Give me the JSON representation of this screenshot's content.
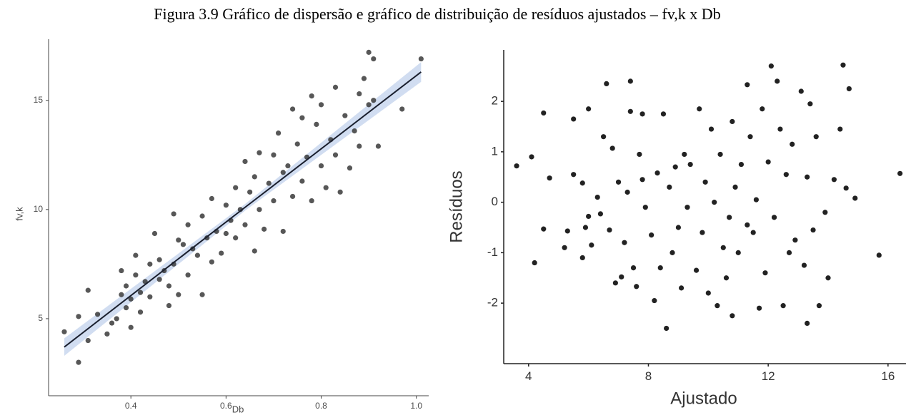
{
  "title": "Figura 3.9 Gráfico de dispersão e gráfico de distribuição de resíduos ajustados – fv,k x Db",
  "chart_data": [
    {
      "type": "scatter",
      "xlabel": "Db",
      "ylabel": "fv,k",
      "color": "#3a3a3a",
      "xlim": [
        0.227,
        1.026
      ],
      "ylim": [
        1.47,
        17.8
      ],
      "xticks": [
        {
          "value": 0.4,
          "label": "0.4"
        },
        {
          "value": 0.6,
          "label": "0.6"
        },
        {
          "value": 0.8,
          "label": "0.8"
        },
        {
          "value": 1.0,
          "label": "1.0"
        }
      ],
      "yticks": [
        5,
        10,
        15
      ],
      "x": [
        0.26,
        0.29,
        0.29,
        0.31,
        0.31,
        0.33,
        0.35,
        0.36,
        0.37,
        0.38,
        0.38,
        0.39,
        0.39,
        0.4,
        0.4,
        0.41,
        0.41,
        0.42,
        0.42,
        0.43,
        0.44,
        0.44,
        0.45,
        0.46,
        0.46,
        0.47,
        0.48,
        0.48,
        0.49,
        0.49,
        0.5,
        0.5,
        0.51,
        0.52,
        0.52,
        0.53,
        0.54,
        0.55,
        0.55,
        0.56,
        0.57,
        0.57,
        0.58,
        0.59,
        0.6,
        0.6,
        0.61,
        0.62,
        0.62,
        0.63,
        0.64,
        0.64,
        0.65,
        0.66,
        0.66,
        0.67,
        0.67,
        0.68,
        0.69,
        0.7,
        0.7,
        0.71,
        0.72,
        0.72,
        0.73,
        0.74,
        0.74,
        0.75,
        0.76,
        0.76,
        0.77,
        0.78,
        0.78,
        0.79,
        0.8,
        0.8,
        0.81,
        0.82,
        0.83,
        0.83,
        0.84,
        0.85,
        0.86,
        0.87,
        0.88,
        0.88,
        0.89,
        0.9,
        0.9,
        0.91,
        0.91,
        0.92,
        0.97,
        1.01
      ],
      "y": [
        4.4,
        3.0,
        5.1,
        6.3,
        4.0,
        5.2,
        4.3,
        4.8,
        5.0,
        7.2,
        6.1,
        5.5,
        6.5,
        4.6,
        5.9,
        7.9,
        7.0,
        6.2,
        5.3,
        6.7,
        7.5,
        6.0,
        8.9,
        6.8,
        7.7,
        7.2,
        5.6,
        6.5,
        9.8,
        7.5,
        8.6,
        6.1,
        8.4,
        9.3,
        7.0,
        8.2,
        7.9,
        6.1,
        9.7,
        8.7,
        10.5,
        7.6,
        9.0,
        8.0,
        10.2,
        8.9,
        9.5,
        11.0,
        8.7,
        10.0,
        12.2,
        9.3,
        10.8,
        8.1,
        11.5,
        12.6,
        10.0,
        9.1,
        11.2,
        12.5,
        10.4,
        13.5,
        11.7,
        9.0,
        12.0,
        14.6,
        10.6,
        13.0,
        11.3,
        14.2,
        12.4,
        15.2,
        10.4,
        13.9,
        12.0,
        14.8,
        11.0,
        13.2,
        15.6,
        12.5,
        10.8,
        14.3,
        11.9,
        13.6,
        15.3,
        12.9,
        16.0,
        17.2,
        14.8,
        16.9,
        15.0,
        12.9,
        14.6,
        16.9
      ],
      "fit": {
        "color": "#1a1f2e",
        "band_color": "#c6d4ee",
        "x": [
          0.26,
          0.64,
          1.01
        ],
        "y": [
          3.7,
          10.1,
          16.3
        ],
        "lower": [
          3.3,
          9.95,
          15.85
        ],
        "upper": [
          4.1,
          10.25,
          16.75
        ]
      }
    },
    {
      "type": "scatter",
      "xlabel": "Ajustado",
      "ylabel": "Resíduos",
      "color": "#222222",
      "xlim": [
        3.17,
        16.6
      ],
      "ylim": [
        -3.2,
        3.02
      ],
      "xticks": [
        4,
        8,
        12,
        16
      ],
      "yticks": [
        -2,
        -1,
        0,
        1,
        2
      ],
      "x": [
        3.6,
        4.1,
        4.2,
        4.5,
        4.5,
        4.7,
        5.2,
        5.3,
        5.5,
        5.5,
        5.8,
        5.8,
        5.9,
        6.0,
        6.0,
        6.1,
        6.3,
        6.4,
        6.5,
        6.6,
        6.7,
        6.8,
        6.9,
        7.0,
        7.1,
        7.2,
        7.3,
        7.4,
        7.4,
        7.5,
        7.6,
        7.7,
        7.8,
        7.8,
        7.9,
        8.1,
        8.2,
        8.3,
        8.4,
        8.5,
        8.6,
        8.7,
        8.8,
        8.9,
        9.0,
        9.1,
        9.2,
        9.3,
        9.4,
        9.6,
        9.7,
        9.8,
        9.9,
        10.0,
        10.1,
        10.2,
        10.3,
        10.4,
        10.5,
        10.6,
        10.7,
        10.8,
        10.8,
        10.9,
        11.0,
        11.1,
        11.3,
        11.3,
        11.4,
        11.5,
        11.6,
        11.7,
        11.8,
        11.9,
        12.0,
        12.1,
        12.2,
        12.3,
        12.4,
        12.5,
        12.6,
        12.7,
        12.8,
        12.9,
        13.1,
        13.2,
        13.3,
        13.3,
        13.4,
        13.5,
        13.6,
        13.7,
        13.9,
        14.0,
        14.2,
        14.4,
        14.5,
        14.6,
        14.7,
        14.9,
        15.7,
        16.4
      ],
      "y": [
        0.72,
        0.9,
        -1.2,
        1.77,
        -0.53,
        0.48,
        -0.9,
        -0.57,
        1.65,
        0.55,
        0.38,
        -1.1,
        -0.5,
        1.85,
        -0.28,
        -0.85,
        0.1,
        -0.23,
        1.3,
        2.35,
        -0.55,
        1.07,
        -1.6,
        0.4,
        -1.48,
        -0.8,
        0.2,
        2.4,
        1.8,
        -1.3,
        -1.67,
        0.95,
        1.75,
        0.45,
        -0.1,
        -0.65,
        -1.95,
        0.58,
        -1.3,
        1.75,
        -2.5,
        0.3,
        -1.0,
        0.7,
        -0.5,
        -1.7,
        0.95,
        -0.1,
        0.75,
        -1.35,
        1.85,
        -0.6,
        0.4,
        -1.8,
        1.45,
        0.0,
        -2.05,
        0.95,
        -0.9,
        -1.5,
        -0.3,
        1.6,
        -2.25,
        0.3,
        -1.0,
        0.75,
        2.33,
        -0.45,
        1.3,
        -0.6,
        0.05,
        -2.1,
        1.85,
        -1.4,
        0.8,
        2.7,
        -0.3,
        2.4,
        1.45,
        -2.05,
        0.55,
        -1.0,
        1.15,
        -0.75,
        2.2,
        -1.25,
        -2.4,
        0.5,
        1.95,
        -0.55,
        1.3,
        -2.05,
        -0.2,
        -1.5,
        0.45,
        1.45,
        2.72,
        0.28,
        2.25,
        0.08,
        -1.05,
        0.57
      ]
    }
  ]
}
